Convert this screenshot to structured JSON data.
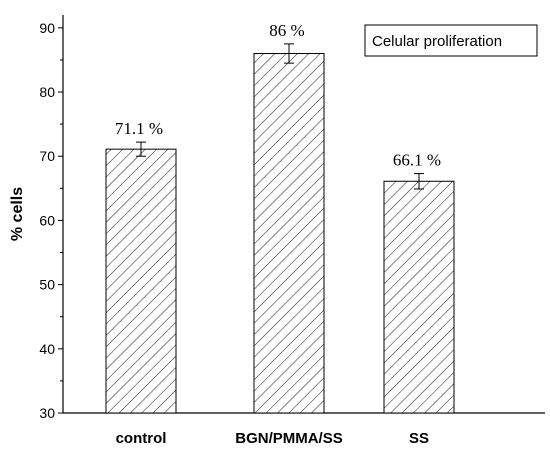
{
  "chart_data": {
    "type": "bar",
    "title": "",
    "xlabel": "",
    "ylabel": "% cells",
    "ylim": [
      30,
      92
    ],
    "yticks": [
      30,
      40,
      50,
      60,
      70,
      80,
      90
    ],
    "categories": [
      "control",
      "BGN/PMMA/SS",
      "SS"
    ],
    "series": [
      {
        "name": "Celular proliferation",
        "values": [
          71.1,
          86,
          66.1
        ],
        "errors": [
          1.1,
          1.5,
          1.2
        ],
        "data_labels": [
          "71.1 %",
          "86 %",
          "66.1 %"
        ]
      }
    ],
    "bar_fill": "diagonal-hatch",
    "bar_color": "#000000",
    "legend_position": "top-right",
    "grid": false
  }
}
